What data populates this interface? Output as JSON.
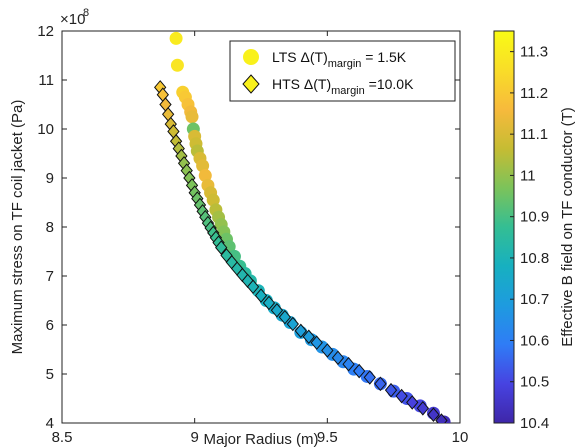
{
  "chart_data": {
    "type": "scatter",
    "xlabel": "Major Radius (m)",
    "ylabel": "Maximum stress on TF coil jacket (Pa)",
    "y_exponent_base": "×10",
    "y_exponent_power": "8",
    "xlim": [
      8.5,
      10
    ],
    "ylim": [
      4,
      12
    ],
    "x_ticks": [
      "8.5",
      "9",
      "9.5",
      "10"
    ],
    "y_ticks": [
      "4",
      "5",
      "6",
      "7",
      "8",
      "9",
      "10",
      "11",
      "12"
    ],
    "colorbar": {
      "label": "Effective B field on TF conductor (T)",
      "range": [
        10.4,
        11.35
      ],
      "ticks": [
        "10.4",
        "10.5",
        "10.6",
        "10.7",
        "10.8",
        "10.9",
        "11",
        "11.1",
        "11.2",
        "11.3"
      ],
      "colormap": [
        "#3e26a8",
        "#4743e1",
        "#2f7cf6",
        "#1e9bdf",
        "#17b0c0",
        "#34be93",
        "#7cc35a",
        "#c6bc33",
        "#f7ba3c",
        "#f9dd28",
        "#f9fb15"
      ]
    },
    "legend": {
      "placement": "top-right",
      "entries": [
        {
          "marker": "circle",
          "name": "LTS Δ(T)",
          "sub": "margin",
          "value": " = 1.5K"
        },
        {
          "marker": "diamond",
          "name": "HTS Δ(T)",
          "sub": "margin",
          "value": " =10.0K"
        }
      ]
    },
    "series": [
      {
        "name": "LTS Δ(T) margin = 1.5K",
        "marker": "circle",
        "x": [
          8.93,
          8.935,
          8.955,
          8.965,
          8.975,
          8.985,
          8.99,
          8.995,
          9.0,
          9.005,
          9.01,
          9.02,
          9.03,
          9.04,
          9.05,
          9.06,
          9.07,
          9.08,
          9.09,
          9.1,
          9.11,
          9.12,
          9.13,
          9.15,
          9.17,
          9.19,
          9.21,
          9.24,
          9.27,
          9.3,
          9.33,
          9.36,
          9.4,
          9.44,
          9.48,
          9.52,
          9.56,
          9.6,
          9.65,
          9.7,
          9.75,
          9.8,
          9.85,
          9.9,
          9.94
        ],
        "y": [
          11.85,
          11.3,
          10.75,
          10.65,
          10.5,
          10.35,
          10.25,
          10.0,
          9.85,
          9.7,
          9.55,
          9.4,
          9.25,
          9.05,
          8.85,
          8.7,
          8.55,
          8.35,
          8.2,
          8.05,
          7.9,
          7.75,
          7.6,
          7.4,
          7.2,
          7.05,
          6.9,
          6.7,
          6.5,
          6.35,
          6.2,
          6.05,
          5.85,
          5.7,
          5.55,
          5.4,
          5.25,
          5.1,
          4.95,
          4.8,
          4.65,
          4.5,
          4.35,
          4.2,
          4.02
        ],
        "b": [
          11.3,
          11.28,
          11.22,
          11.2,
          11.18,
          11.15,
          11.13,
          10.95,
          11.1,
          11.08,
          11.05,
          11.1,
          11.12,
          11.15,
          11.13,
          11.1,
          11.08,
          11.05,
          11.02,
          11.0,
          10.98,
          10.95,
          10.93,
          10.9,
          10.88,
          10.85,
          10.83,
          10.8,
          10.78,
          10.76,
          10.74,
          10.72,
          10.7,
          10.68,
          10.66,
          10.64,
          10.62,
          10.6,
          10.58,
          10.56,
          10.54,
          10.52,
          10.5,
          10.47,
          10.42
        ]
      },
      {
        "name": "HTS Δ(T) margin =10.0K",
        "marker": "diamond",
        "x": [
          8.87,
          8.88,
          8.89,
          8.9,
          8.91,
          8.92,
          8.93,
          8.94,
          8.95,
          8.96,
          8.97,
          8.98,
          8.99,
          9.0,
          9.01,
          9.02,
          9.03,
          9.04,
          9.05,
          9.06,
          9.07,
          9.08,
          9.09,
          9.1,
          9.12,
          9.14,
          9.16,
          9.18,
          9.2,
          9.22,
          9.25,
          9.28,
          9.31,
          9.34,
          9.37,
          9.4,
          9.43,
          9.46,
          9.5,
          9.54,
          9.58,
          9.62,
          9.66,
          9.7,
          9.74,
          9.78,
          9.82,
          9.86,
          9.9,
          9.93
        ],
        "y": [
          10.85,
          10.7,
          10.5,
          10.3,
          10.1,
          9.95,
          9.75,
          9.6,
          9.45,
          9.3,
          9.15,
          9.0,
          8.85,
          8.7,
          8.58,
          8.45,
          8.32,
          8.2,
          8.08,
          7.98,
          7.88,
          7.78,
          7.68,
          7.58,
          7.42,
          7.28,
          7.15,
          7.02,
          6.9,
          6.78,
          6.6,
          6.45,
          6.3,
          6.16,
          6.02,
          5.88,
          5.76,
          5.64,
          5.48,
          5.33,
          5.2,
          5.06,
          4.93,
          4.8,
          4.67,
          4.55,
          4.42,
          4.3,
          4.17,
          4.05
        ],
        "b": [
          11.2,
          11.18,
          11.15,
          11.13,
          11.1,
          11.08,
          11.06,
          11.04,
          11.02,
          11.0,
          10.99,
          10.98,
          10.97,
          10.96,
          10.95,
          10.94,
          10.93,
          10.92,
          10.91,
          10.9,
          10.89,
          10.88,
          10.87,
          10.86,
          10.85,
          10.84,
          10.83,
          10.82,
          10.81,
          10.8,
          10.78,
          10.77,
          10.75,
          10.74,
          10.72,
          10.7,
          10.69,
          10.67,
          10.65,
          10.63,
          10.61,
          10.59,
          10.57,
          10.55,
          10.53,
          10.51,
          10.49,
          10.47,
          10.45,
          10.43
        ]
      }
    ]
  }
}
